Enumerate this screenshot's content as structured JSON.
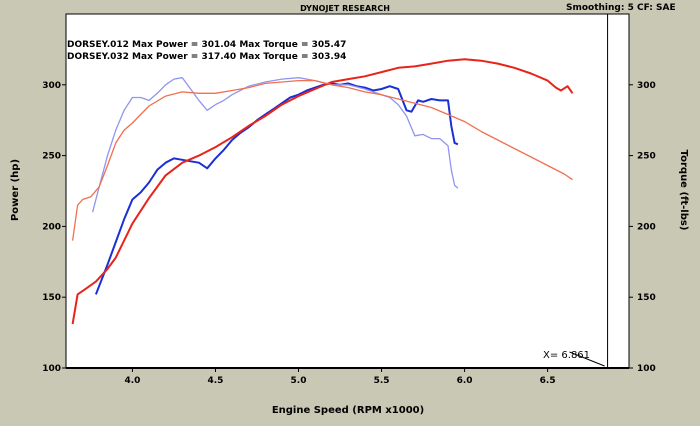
{
  "header": {
    "title": "DYNOJET RESEARCH",
    "smoothing_text": "Smoothing: 5  CF: SAE"
  },
  "runs": [
    {
      "name": "DORSEY.012",
      "summary": "DORSEY.012 Max Power = 301.04 Max Torque = 305.47"
    },
    {
      "name": "DORSEY.032",
      "summary": "DORSEY.032 Max Power = 317.40 Max Torque = 303.94"
    }
  ],
  "cursor": {
    "x": 6.861,
    "readout": "X= 6.861"
  },
  "colors": {
    "background": "#c8c8b4",
    "plot_bg": "#ffffff",
    "run012": "#1a2fd6",
    "run012_light": "#8f95f0",
    "run032": "#e8231a",
    "run032_light": "#f07050"
  },
  "chart_data": {
    "type": "line",
    "title": "DYNOJET RESEARCH",
    "xlabel": "Engine Speed (RPM x1000)",
    "ylabel": "Power (hp)",
    "y2label": "Torque (ft-lbs)",
    "xlim": [
      3.6,
      6.99
    ],
    "ylim": [
      100,
      350
    ],
    "y2lim": [
      100,
      350
    ],
    "x_ticks": [
      "4.0",
      "4.5",
      "5.0",
      "5.5",
      "6.0",
      "6.5"
    ],
    "y_ticks": [
      "100",
      "150",
      "200",
      "250",
      "300"
    ],
    "y2_ticks": [
      "100",
      "150",
      "200",
      "250",
      "300"
    ],
    "grid": false,
    "series": [
      {
        "name": "DORSEY.012 Power",
        "axis": "left",
        "color": "#1a2fd6",
        "x": [
          3.78,
          3.85,
          3.9,
          3.95,
          4.0,
          4.05,
          4.1,
          4.15,
          4.2,
          4.25,
          4.3,
          4.35,
          4.4,
          4.45,
          4.5,
          4.55,
          4.6,
          4.65,
          4.7,
          4.75,
          4.8,
          4.85,
          4.9,
          4.95,
          5.0,
          5.05,
          5.1,
          5.15,
          5.2,
          5.25,
          5.3,
          5.35,
          5.4,
          5.45,
          5.5,
          5.55,
          5.6,
          5.65,
          5.68,
          5.72,
          5.75,
          5.8,
          5.85,
          5.9,
          5.92,
          5.94,
          5.96
        ],
        "y": [
          152,
          173,
          189,
          205,
          219,
          224,
          231,
          240,
          245,
          248,
          247,
          246,
          245,
          241,
          248,
          254,
          261,
          266,
          270,
          275,
          279,
          283,
          287,
          291,
          293,
          296,
          298,
          300,
          301,
          300,
          301,
          299,
          298,
          296,
          297,
          299,
          297,
          282,
          281,
          289,
          288,
          290,
          289,
          289,
          271,
          259,
          258
        ]
      },
      {
        "name": "DORSEY.012 Torque",
        "axis": "right",
        "color": "#8f95f0",
        "x": [
          3.76,
          3.8,
          3.85,
          3.9,
          3.95,
          4.0,
          4.05,
          4.1,
          4.15,
          4.2,
          4.25,
          4.3,
          4.35,
          4.4,
          4.45,
          4.5,
          4.55,
          4.6,
          4.7,
          4.8,
          4.9,
          5.0,
          5.1,
          5.2,
          5.3,
          5.4,
          5.5,
          5.55,
          5.6,
          5.65,
          5.7,
          5.75,
          5.8,
          5.85,
          5.9,
          5.92,
          5.94,
          5.96
        ],
        "y": [
          210,
          228,
          250,
          268,
          282,
          291,
          291,
          289,
          294,
          300,
          304,
          305,
          297,
          289,
          282,
          286,
          289,
          293,
          299,
          302,
          304,
          305,
          303,
          300,
          300,
          297,
          293,
          291,
          286,
          278,
          264,
          265,
          262,
          262,
          257,
          240,
          229,
          227
        ]
      },
      {
        "name": "DORSEY.032 Power",
        "axis": "left",
        "color": "#e8231a",
        "x": [
          3.64,
          3.67,
          3.72,
          3.78,
          3.85,
          3.9,
          3.95,
          4.0,
          4.1,
          4.2,
          4.3,
          4.4,
          4.5,
          4.6,
          4.7,
          4.8,
          4.9,
          5.0,
          5.1,
          5.2,
          5.3,
          5.4,
          5.5,
          5.6,
          5.7,
          5.8,
          5.9,
          6.0,
          6.1,
          6.2,
          6.3,
          6.4,
          6.5,
          6.55,
          6.58,
          6.62,
          6.65
        ],
        "y": [
          131,
          152,
          156,
          161,
          170,
          178,
          190,
          202,
          220,
          236,
          245,
          250,
          256,
          263,
          271,
          278,
          286,
          292,
          297,
          302,
          304,
          306,
          309,
          312,
          313,
          315,
          317,
          318,
          317,
          315,
          312,
          308,
          303,
          298,
          296,
          299,
          294
        ]
      },
      {
        "name": "DORSEY.032 Torque",
        "axis": "right",
        "color": "#f07050",
        "x": [
          3.64,
          3.67,
          3.7,
          3.75,
          3.8,
          3.85,
          3.9,
          3.95,
          4.0,
          4.1,
          4.2,
          4.3,
          4.4,
          4.5,
          4.6,
          4.7,
          4.8,
          4.9,
          5.0,
          5.1,
          5.2,
          5.3,
          5.4,
          5.5,
          5.6,
          5.7,
          5.8,
          5.9,
          6.0,
          6.1,
          6.2,
          6.3,
          6.4,
          6.5,
          6.6,
          6.65
        ],
        "y": [
          190,
          215,
          219,
          221,
          228,
          243,
          259,
          268,
          273,
          285,
          292,
          295,
          294,
          294,
          296,
          298,
          301,
          302,
          303,
          303,
          300,
          298,
          295,
          293,
          290,
          287,
          284,
          279,
          274,
          267,
          261,
          255,
          249,
          243,
          237,
          233
        ]
      }
    ]
  }
}
